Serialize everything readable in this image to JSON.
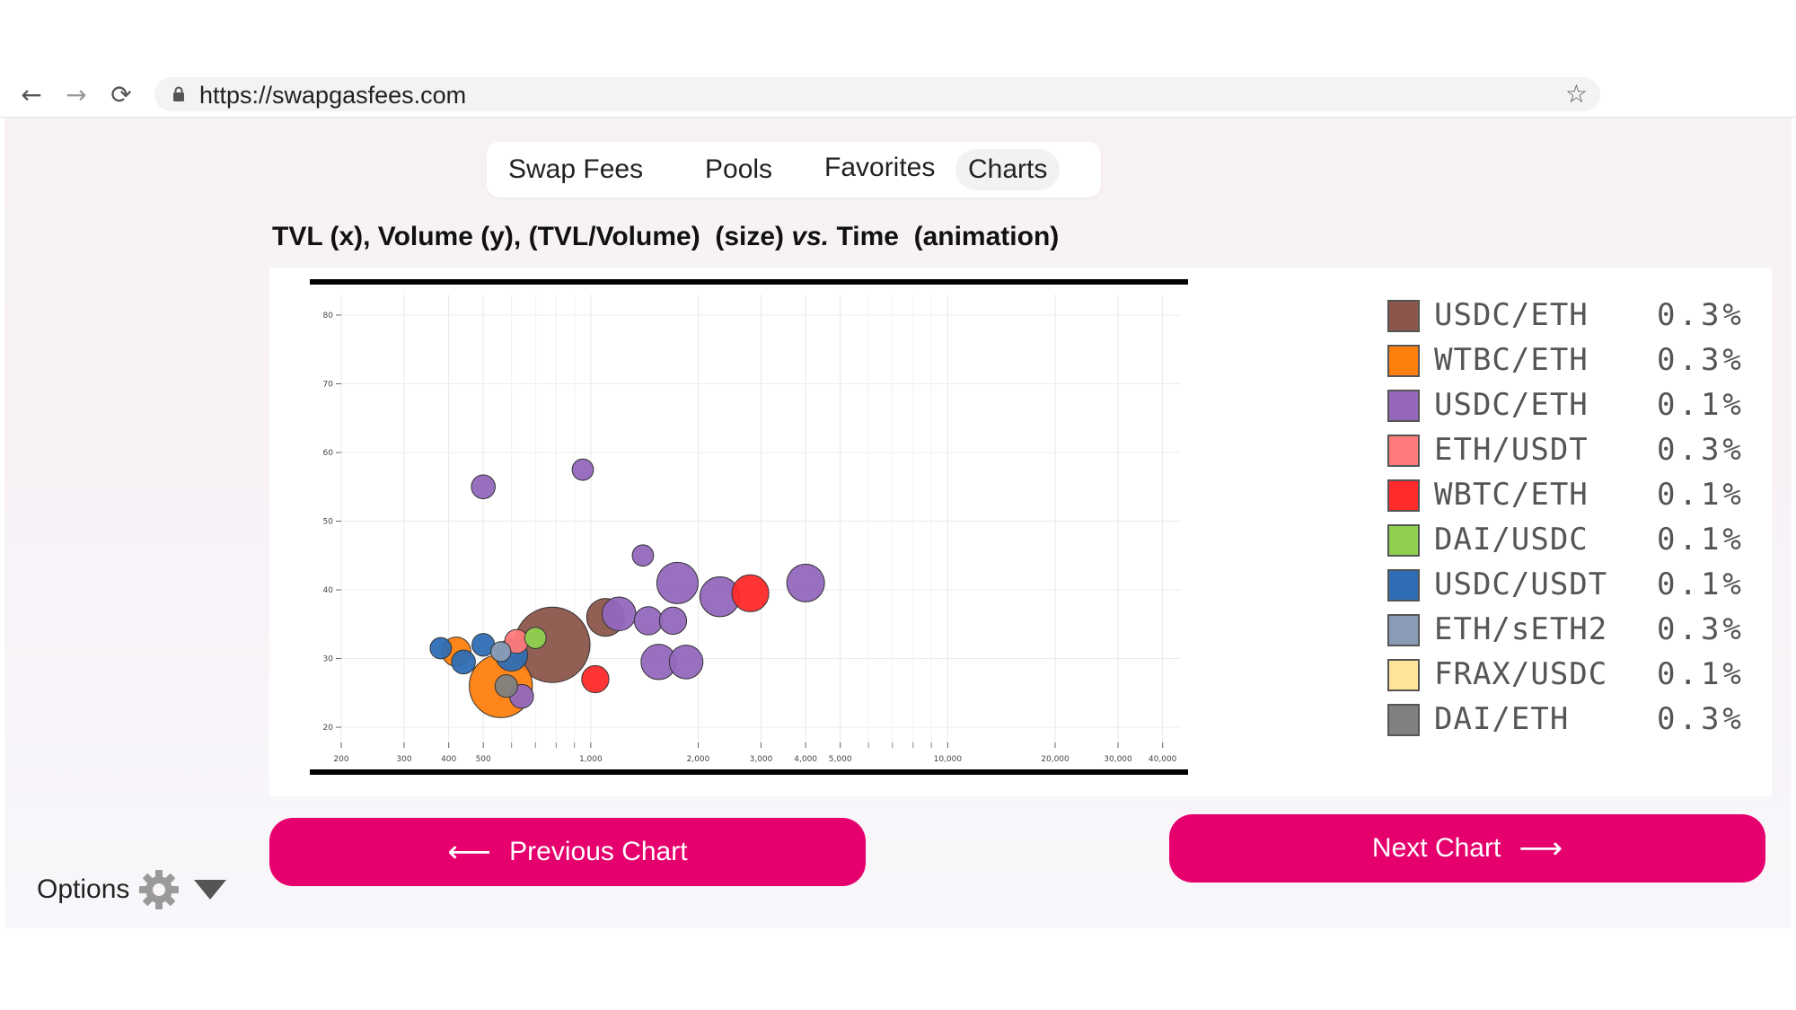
{
  "browser": {
    "url": "https://swapgasfees.com",
    "back_glyph": "←",
    "forward_glyph": "→",
    "reload_glyph": "⟳",
    "star_glyph": "☆"
  },
  "tabs": [
    {
      "label": "Swap Fees",
      "active": false
    },
    {
      "label": "Pools",
      "active": false
    },
    {
      "label": "Favorites",
      "active": false
    },
    {
      "label": "Charts",
      "active": true
    }
  ],
  "title": {
    "part1": "TVL (x), Volume (y), (TVL/Volume)  (size)",
    "vs": "vs.",
    "part2": "Time  (animation)"
  },
  "legend": [
    {
      "name": "USDC/ETH",
      "fee": "0.3%",
      "color": "#8c564b"
    },
    {
      "name": "WTBC/ETH",
      "fee": "0.3%",
      "color": "#ff7f0e"
    },
    {
      "name": "USDC/ETH",
      "fee": "0.1%",
      "color": "#9467bd"
    },
    {
      "name": "ETH/USDT",
      "fee": "0.3%",
      "color": "#ff7a7a"
    },
    {
      "name": "WBTC/ETH",
      "fee": "0.1%",
      "color": "#ff2a2a"
    },
    {
      "name": "DAI/USDC",
      "fee": "0.1%",
      "color": "#8fd14f"
    },
    {
      "name": "USDC/USDT",
      "fee": "0.1%",
      "color": "#2f6eb5"
    },
    {
      "name": "ETH/sETH2",
      "fee": "0.3%",
      "color": "#8a9bb5"
    },
    {
      "name": "FRAX/USDC",
      "fee": "0.1%",
      "color": "#ffe49a"
    },
    {
      "name": "DAI/ETH",
      "fee": "0.3%",
      "color": "#808080"
    }
  ],
  "buttons": {
    "previous_label": "Previous Chart",
    "previous_arrow": "⟵",
    "next_label": "Next Chart",
    "next_arrow": "⟶"
  },
  "options": {
    "label": "Options"
  },
  "chart_data": {
    "type": "scatter",
    "title": "",
    "xlabel": "",
    "ylabel": "",
    "x_scale": "log",
    "xlim": [
      200,
      45000
    ],
    "ylim": [
      17,
      83
    ],
    "x_ticks": [
      "200",
      "300",
      "400",
      "500",
      "1,000",
      "2,000",
      "3,000",
      "4,000",
      "5,000",
      "10,000",
      "20,000",
      "30,000",
      "40,000"
    ],
    "x_tick_values": [
      200,
      300,
      400,
      500,
      1000,
      2000,
      3000,
      4000,
      5000,
      10000,
      20000,
      30000,
      40000
    ],
    "y_ticks": [
      "20",
      "30",
      "40",
      "50",
      "60",
      "70",
      "80"
    ],
    "y_tick_values": [
      20,
      30,
      40,
      50,
      60,
      70,
      80
    ],
    "grid": true,
    "points": [
      {
        "series": "USDC/ETH 0.3%",
        "x": 780,
        "y": 32,
        "size": 1.0
      },
      {
        "series": "USDC/ETH 0.3%",
        "x": 1100,
        "y": 36,
        "size": 0.25
      },
      {
        "series": "WTBC/ETH 0.3%",
        "x": 560,
        "y": 26,
        "size": 0.7
      },
      {
        "series": "WTBC/ETH 0.3%",
        "x": 420,
        "y": 31,
        "size": 0.15
      },
      {
        "series": "USDC/ETH 0.1%",
        "x": 1750,
        "y": 41,
        "size": 0.3
      },
      {
        "series": "USDC/ETH 0.1%",
        "x": 4000,
        "y": 41,
        "size": 0.25
      },
      {
        "series": "USDC/ETH 0.1%",
        "x": 2300,
        "y": 39,
        "size": 0.28
      },
      {
        "series": "USDC/ETH 0.1%",
        "x": 1200,
        "y": 36.5,
        "size": 0.2
      },
      {
        "series": "USDC/ETH 0.1%",
        "x": 1550,
        "y": 29.5,
        "size": 0.22
      },
      {
        "series": "USDC/ETH 0.1%",
        "x": 1850,
        "y": 29.5,
        "size": 0.2
      },
      {
        "series": "USDC/ETH 0.1%",
        "x": 1450,
        "y": 35.5,
        "size": 0.14
      },
      {
        "series": "USDC/ETH 0.1%",
        "x": 1700,
        "y": 35.5,
        "size": 0.13
      },
      {
        "series": "USDC/ETH 0.1%",
        "x": 500,
        "y": 55,
        "size": 0.1
      },
      {
        "series": "USDC/ETH 0.1%",
        "x": 950,
        "y": 57.5,
        "size": 0.08
      },
      {
        "series": "USDC/ETH 0.1%",
        "x": 1400,
        "y": 45,
        "size": 0.08
      },
      {
        "series": "USDC/ETH 0.1%",
        "x": 640,
        "y": 24.5,
        "size": 0.1
      },
      {
        "series": "WBTC/ETH 0.1%",
        "x": 2800,
        "y": 39.5,
        "size": 0.24
      },
      {
        "series": "WBTC/ETH 0.1%",
        "x": 1030,
        "y": 27,
        "size": 0.13
      },
      {
        "series": "ETH/USDT 0.3%",
        "x": 620,
        "y": 32.5,
        "size": 0.1
      },
      {
        "series": "DAI/USDC 0.1%",
        "x": 700,
        "y": 33,
        "size": 0.08
      },
      {
        "series": "USDC/USDT 0.1%",
        "x": 600,
        "y": 30.5,
        "size": 0.18
      },
      {
        "series": "USDC/USDT 0.1%",
        "x": 380,
        "y": 31.5,
        "size": 0.08
      },
      {
        "series": "USDC/USDT 0.1%",
        "x": 440,
        "y": 29.5,
        "size": 0.1
      },
      {
        "series": "USDC/USDT 0.1%",
        "x": 500,
        "y": 32,
        "size": 0.09
      },
      {
        "series": "ETH/sETH2 0.3%",
        "x": 560,
        "y": 31,
        "size": 0.07
      },
      {
        "series": "DAI/ETH 0.3%",
        "x": 580,
        "y": 26,
        "size": 0.09
      }
    ]
  }
}
